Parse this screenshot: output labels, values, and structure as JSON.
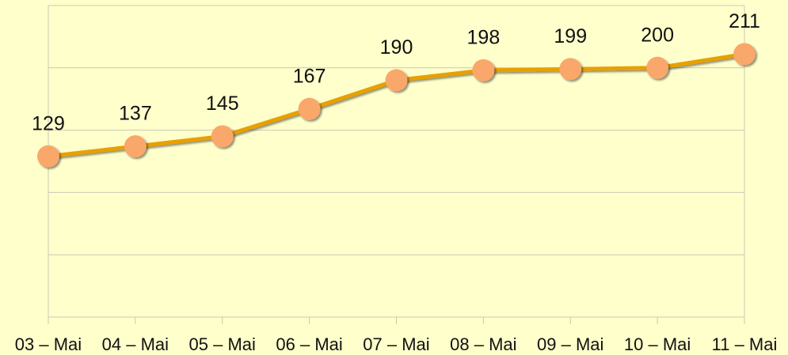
{
  "chart_data": {
    "type": "line",
    "categories": [
      "03 – Mai",
      "04 – Mai",
      "05 – Mai",
      "06 – Mai",
      "07 – Mai",
      "08 – Mai",
      "09 – Mai",
      "10 – Mai",
      "11 – Mai"
    ],
    "series": [
      {
        "name": null,
        "color": "#e8a000",
        "marker_color": "#f9a76a",
        "values": [
          129,
          137,
          145,
          167,
          190,
          198,
          199,
          200,
          211
        ]
      }
    ],
    "ylim": [
      0,
      250
    ],
    "yticks": [
      0,
      50,
      100,
      150,
      200,
      250
    ],
    "grid": true
  }
}
